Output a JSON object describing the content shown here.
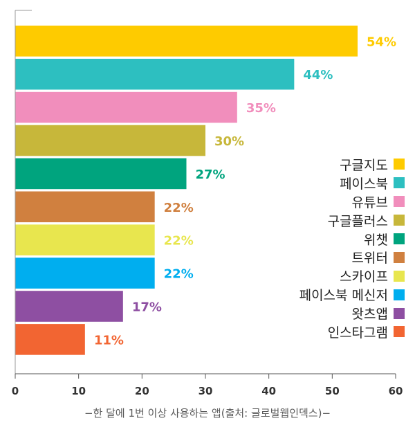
{
  "chart_data": {
    "type": "bar",
    "orientation": "horizontal",
    "categories": [
      "구글지도",
      "페이스북",
      "유튜브",
      "구글플러스",
      "위챗",
      "트위터",
      "스카이프",
      "페이스북 메신저",
      "왓츠앱",
      "인스타그램"
    ],
    "values": [
      54,
      44,
      35,
      30,
      27,
      22,
      22,
      22,
      17,
      11
    ],
    "value_labels": [
      "54%",
      "44%",
      "35%",
      "30%",
      "27%",
      "22%",
      "22%",
      "22%",
      "17%",
      "11%"
    ],
    "colors": [
      "#FECB00",
      "#2DBFC0",
      "#F18EBC",
      "#C7B73A",
      "#00A47E",
      "#D0803F",
      "#E8E64E",
      "#00AEEF",
      "#8E4FA2",
      "#F26532"
    ],
    "xlim": [
      0,
      60
    ],
    "xticks": [
      "0",
      "10",
      "20",
      "30",
      "40",
      "50",
      "60"
    ],
    "grid": false,
    "legend": "right",
    "caption": "−한 달에 1번 이상 사용하는 앱(출처: 글로벌웹인덱스)−"
  }
}
